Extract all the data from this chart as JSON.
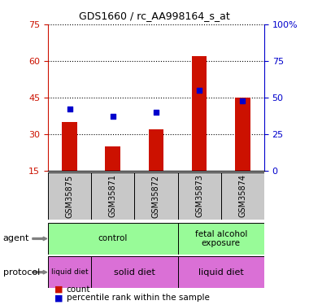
{
  "title": "GDS1660 / rc_AA998164_s_at",
  "samples": [
    "GSM35875",
    "GSM35871",
    "GSM35872",
    "GSM35873",
    "GSM35874"
  ],
  "counts": [
    35,
    25,
    32,
    62,
    45
  ],
  "percentiles": [
    42,
    37,
    40,
    55,
    48
  ],
  "left_ylim": [
    15,
    75
  ],
  "right_ylim": [
    0,
    100
  ],
  "left_yticks": [
    15,
    30,
    45,
    60,
    75
  ],
  "right_yticks": [
    0,
    25,
    50,
    75,
    100
  ],
  "right_yticklabels": [
    "0",
    "25",
    "50",
    "75",
    "100%"
  ],
  "bar_color": "#CC1100",
  "dot_color": "#0000CC",
  "agent_groups": [
    {
      "label": "control",
      "cols": [
        0,
        1,
        2
      ],
      "color": "#90EE90"
    },
    {
      "label": "fetal alcohol\nexposure",
      "cols": [
        3,
        4
      ],
      "color": "#90EE90"
    }
  ],
  "protocol_groups": [
    {
      "label": "liquid diet",
      "cols": [
        0
      ],
      "color": "#DA70D6"
    },
    {
      "label": "solid diet",
      "cols": [
        1,
        2
      ],
      "color": "#DA70D6"
    },
    {
      "label": "liquid diet",
      "cols": [
        3,
        4
      ],
      "color": "#DA70D6"
    }
  ],
  "agent_label": "agent",
  "protocol_label": "protocol",
  "legend_count_label": "count",
  "legend_pct_label": "percentile rank within the sample",
  "tick_label_color_left": "#CC1100",
  "tick_label_color_right": "#0000CC",
  "sample_bg_color": "#C8C8C8",
  "agent_control_color": "#90EE90",
  "agent_fetal_color": "#90EE90",
  "proto_liquid_color": "#DA70D6",
  "proto_solid_color": "#DA70D6"
}
